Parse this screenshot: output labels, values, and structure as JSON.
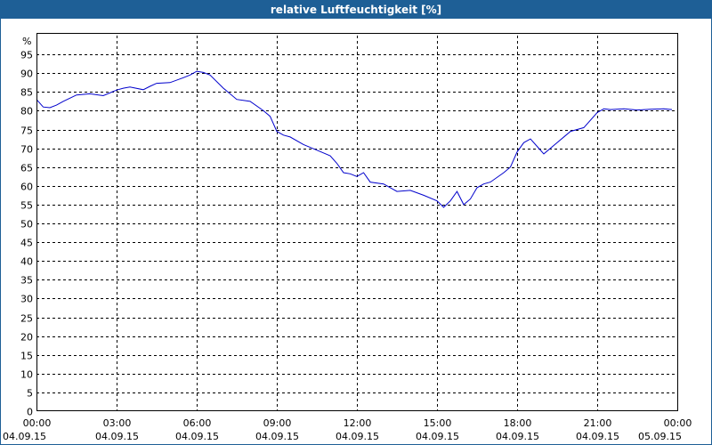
{
  "window": {
    "title": "relative Luftfeuchtigkeit [%]"
  },
  "colors": {
    "titlebar": "#1e5f96",
    "series": "#0000cc",
    "grid": "#000000"
  },
  "chart_data": {
    "type": "line",
    "title": "relative Luftfeuchtigkeit [%]",
    "ylabel": "%",
    "xlabel": "",
    "ylim": [
      0,
      100
    ],
    "xlim_hours": [
      0,
      24
    ],
    "grid": true,
    "y_ticks": [
      0,
      5,
      10,
      15,
      20,
      25,
      30,
      35,
      40,
      45,
      50,
      55,
      60,
      65,
      70,
      75,
      80,
      85,
      90,
      95
    ],
    "x_ticks": [
      {
        "time": "00:00",
        "date": "04.09.15"
      },
      {
        "time": "03:00",
        "date": "04.09.15"
      },
      {
        "time": "06:00",
        "date": "04.09.15"
      },
      {
        "time": "09:00",
        "date": "04.09.15"
      },
      {
        "time": "12:00",
        "date": "04.09.15"
      },
      {
        "time": "15:00",
        "date": "04.09.15"
      },
      {
        "time": "18:00",
        "date": "04.09.15"
      },
      {
        "time": "21:00",
        "date": "04.09.15"
      },
      {
        "time": "00:00",
        "date": "05.09.15"
      }
    ],
    "series": [
      {
        "x_hours": [
          0,
          0.25,
          0.5,
          0.75,
          1,
          1.5,
          2,
          2.5,
          3,
          3.25,
          3.5,
          4,
          4.25,
          4.5,
          5,
          5.5,
          5.75,
          6,
          6.25,
          6.5,
          7,
          7.5,
          8,
          8.5,
          8.75,
          9,
          9.25,
          9.5,
          10,
          10.5,
          11,
          11.25,
          11.5,
          11.75,
          12,
          12.25,
          12.5,
          13,
          13.5,
          14,
          14.5,
          15,
          15.25,
          15.5,
          15.75,
          16,
          16.25,
          16.5,
          16.75,
          17,
          17.5,
          17.75,
          18,
          18.25,
          18.5,
          18.75,
          19,
          19.5,
          20,
          20.5,
          21,
          21.25,
          21.5,
          22,
          22.5,
          23,
          23.5,
          23.8
        ],
        "values": [
          83,
          81,
          80.8,
          81.5,
          82.5,
          84.2,
          84.5,
          84,
          85.5,
          86,
          86.3,
          85.6,
          86.5,
          87.3,
          87.5,
          88.8,
          89.5,
          90.5,
          90.2,
          89.5,
          86,
          83,
          82.5,
          80,
          78.5,
          74.5,
          73.5,
          73,
          71,
          69.5,
          68,
          66,
          63.5,
          63.2,
          62.5,
          63.5,
          61,
          60.5,
          58.5,
          58.8,
          57.5,
          56,
          54.3,
          56,
          58.5,
          55,
          56.5,
          59.5,
          60.5,
          61,
          63.5,
          65,
          69,
          71.5,
          72.5,
          70.5,
          68.5,
          71.5,
          74.5,
          75.5,
          79.5,
          80.5,
          80.3,
          80.5,
          80.2,
          80.4,
          80.5,
          80.3
        ]
      }
    ]
  }
}
